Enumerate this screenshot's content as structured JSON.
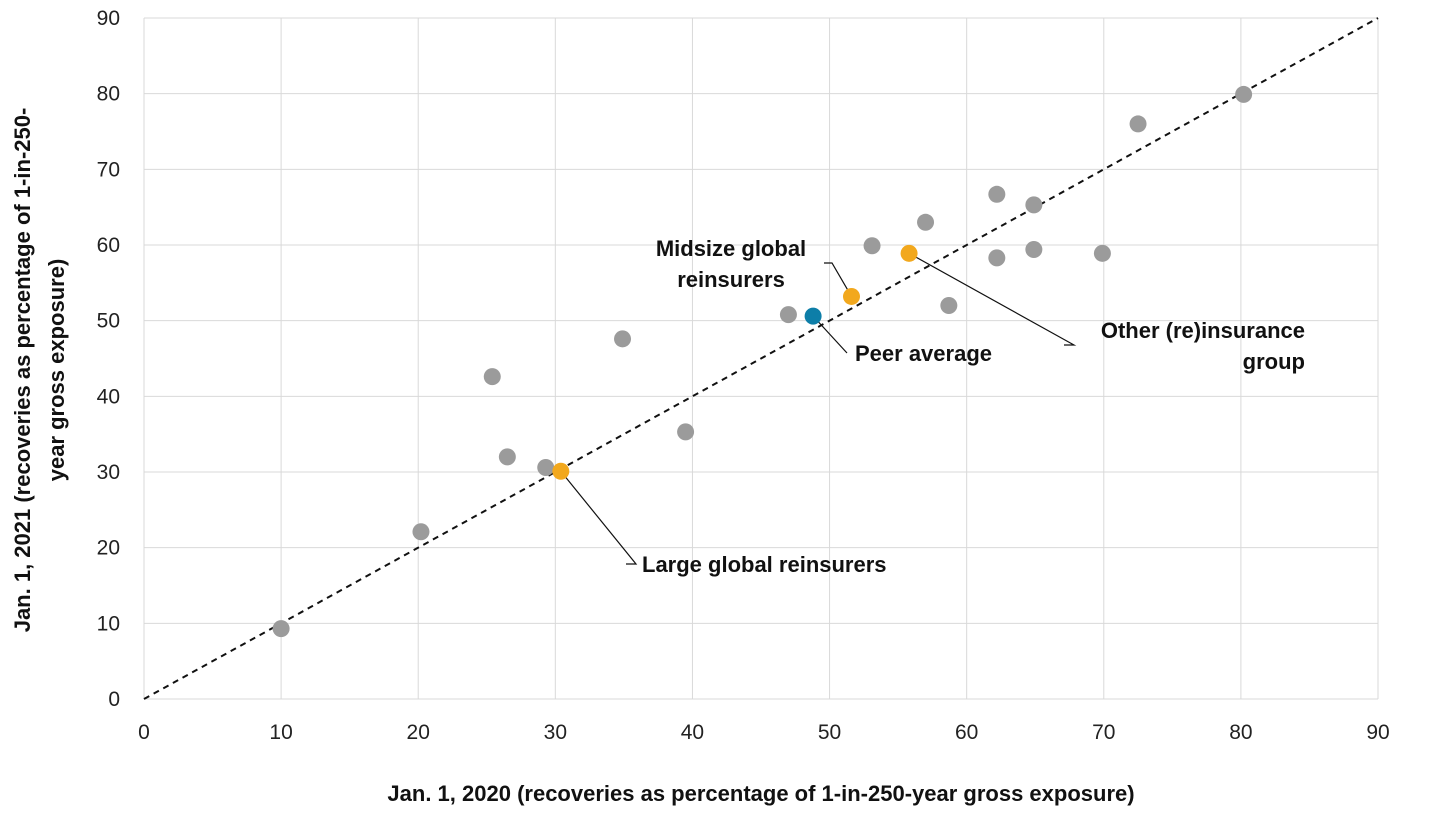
{
  "chart_data": {
    "type": "scatter",
    "xlabel": "Jan. 1, 2020 (recoveries as percentage of 1-in-250-year gross exposure)",
    "ylabel": [
      "Jan. 1, 2021 (recoveries as percentage of 1-in-250-",
      "year gross exposure)"
    ],
    "xlim": [
      0,
      90
    ],
    "ylim": [
      0,
      90
    ],
    "x_ticks": [
      "0",
      "10",
      "20",
      "30",
      "40",
      "50",
      "60",
      "70",
      "80",
      "90"
    ],
    "y_ticks": [
      "0",
      "10",
      "20",
      "30",
      "40",
      "50",
      "60",
      "70",
      "80",
      "90"
    ],
    "grid": true,
    "reference_line": {
      "style": "dashed",
      "from": [
        0,
        0
      ],
      "to": [
        90,
        90
      ]
    },
    "colors": {
      "peer": "#9b9b9b",
      "highlight": "#f2a81d",
      "average": "#0d7ea8",
      "grid": "#d9d9d9"
    },
    "points": [
      {
        "x": 10.0,
        "y": 9.3,
        "group": "peer"
      },
      {
        "x": 20.2,
        "y": 22.1,
        "group": "peer"
      },
      {
        "x": 25.4,
        "y": 42.6,
        "group": "peer"
      },
      {
        "x": 26.5,
        "y": 32.0,
        "group": "peer"
      },
      {
        "x": 29.3,
        "y": 30.6,
        "group": "peer"
      },
      {
        "x": 30.4,
        "y": 30.1,
        "group": "highlight"
      },
      {
        "x": 34.9,
        "y": 47.6,
        "group": "peer"
      },
      {
        "x": 39.5,
        "y": 35.3,
        "group": "peer"
      },
      {
        "x": 47.0,
        "y": 50.8,
        "group": "peer"
      },
      {
        "x": 48.8,
        "y": 50.6,
        "group": "average"
      },
      {
        "x": 51.6,
        "y": 53.2,
        "group": "highlight"
      },
      {
        "x": 53.1,
        "y": 59.9,
        "group": "peer"
      },
      {
        "x": 55.8,
        "y": 58.9,
        "group": "highlight"
      },
      {
        "x": 57.0,
        "y": 63.0,
        "group": "peer"
      },
      {
        "x": 58.7,
        "y": 52.0,
        "group": "peer"
      },
      {
        "x": 62.2,
        "y": 66.7,
        "group": "peer"
      },
      {
        "x": 62.2,
        "y": 58.3,
        "group": "peer"
      },
      {
        "x": 64.9,
        "y": 65.3,
        "group": "peer"
      },
      {
        "x": 64.9,
        "y": 59.4,
        "group": "peer"
      },
      {
        "x": 69.9,
        "y": 58.9,
        "group": "peer"
      },
      {
        "x": 72.5,
        "y": 76.0,
        "group": "peer"
      },
      {
        "x": 80.2,
        "y": 79.9,
        "group": "peer"
      }
    ],
    "annotations": [
      {
        "name": "midsize",
        "lines": [
          "Midsize global",
          "reinsurers"
        ],
        "point": [
          51.6,
          53.2
        ]
      },
      {
        "name": "peer-average",
        "lines": [
          "Peer average"
        ],
        "point": [
          48.8,
          50.6
        ]
      },
      {
        "name": "other-group",
        "lines": [
          "Other (re)insurance",
          "group"
        ],
        "point": [
          55.8,
          58.9
        ]
      },
      {
        "name": "large",
        "lines": [
          "Large global reinsurers"
        ],
        "point": [
          30.4,
          30.1
        ]
      }
    ]
  }
}
